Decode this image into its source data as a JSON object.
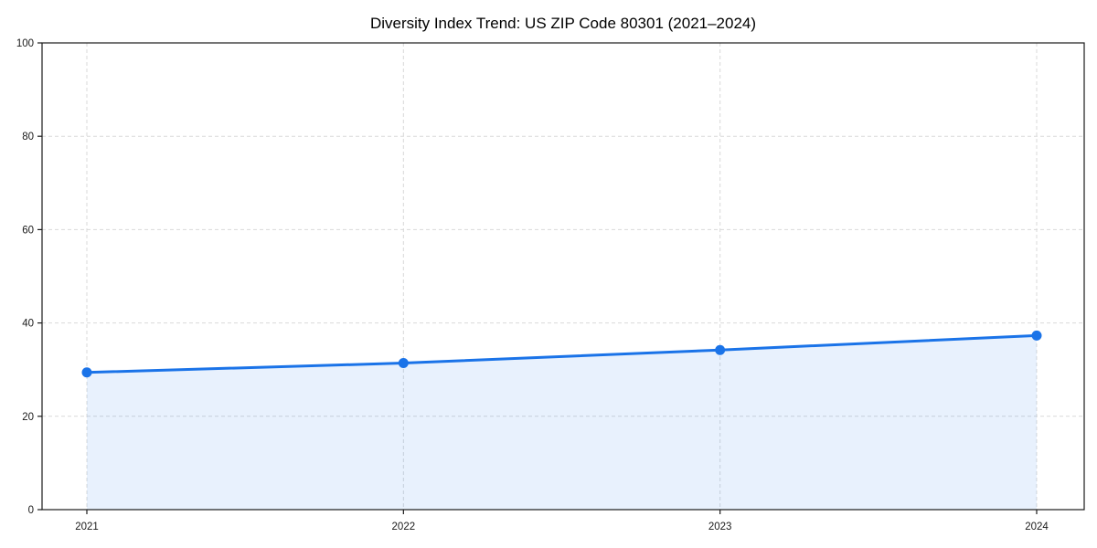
{
  "chart_data": {
    "type": "area",
    "title": "Diversity Index Trend: US ZIP Code 80301 (2021–2024)",
    "categories": [
      "2021",
      "2022",
      "2023",
      "2024"
    ],
    "series": [
      {
        "name": "Diversity Index",
        "values": [
          29.4,
          31.4,
          34.2,
          37.3
        ]
      }
    ],
    "xlabel": "",
    "ylabel": "",
    "ylim": [
      0,
      100
    ],
    "yticks": [
      0,
      20,
      40,
      60,
      80,
      100
    ],
    "grid": "dashed, horizontal and vertical at ticks",
    "legend": "none",
    "colors": {
      "line": "#1a73e8",
      "marker": "#1a73e8",
      "area_fill": "rgba(26,115,232,0.10)",
      "grid": "#d9d9d9",
      "axis": "#1a1a1a",
      "background": "#ffffff"
    }
  }
}
